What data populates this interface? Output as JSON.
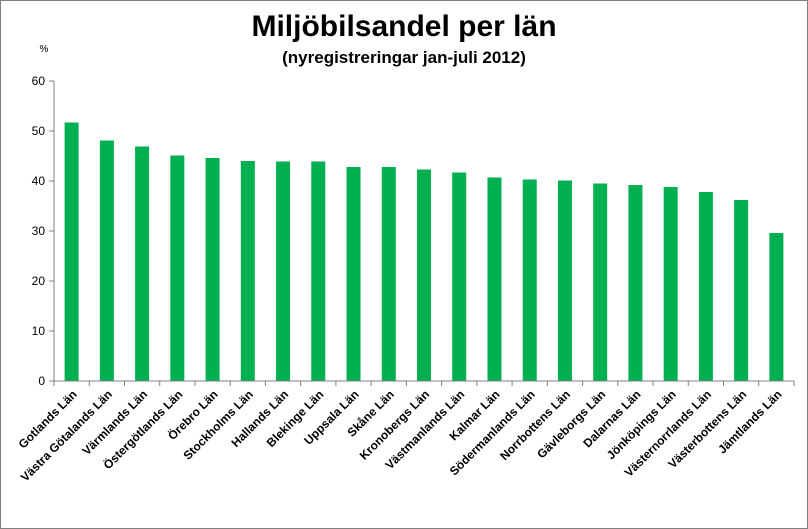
{
  "chart_data": {
    "type": "bar",
    "title": "Miljöbilsandel per län",
    "subtitle": "(nyregistreringar jan-juli 2012)",
    "ylabel": "%",
    "xlabel": "",
    "ylim": [
      0,
      60
    ],
    "yticks": [
      0,
      10,
      20,
      30,
      40,
      50,
      60
    ],
    "grid": false,
    "legend": "none",
    "bar_color": "#00b050",
    "categories": [
      "Gotlands Län",
      "Västra Götalands Län",
      "Värmlands Län",
      "Östergötlands Län",
      "Örebro Län",
      "Stockholms Län",
      "Hallands Län",
      "Blekinge Län",
      "Uppsala Län",
      "Skåne Län",
      "Kronobergs Län",
      "Västmanlands Län",
      "Kalmar Län",
      "Södermanlands Län",
      "Norrbottens Län",
      "Gävleborgs Län",
      "Dalarnas Län",
      "Jönköpings Län",
      "Västernorrlands Län",
      "Västerbottens Län",
      "Jämtlands Län"
    ],
    "values": [
      51.7,
      48.1,
      46.9,
      45.1,
      44.6,
      44.0,
      43.9,
      43.9,
      42.8,
      42.8,
      42.3,
      41.7,
      40.7,
      40.3,
      40.1,
      39.5,
      39.2,
      38.8,
      37.8,
      36.2,
      29.6
    ]
  }
}
